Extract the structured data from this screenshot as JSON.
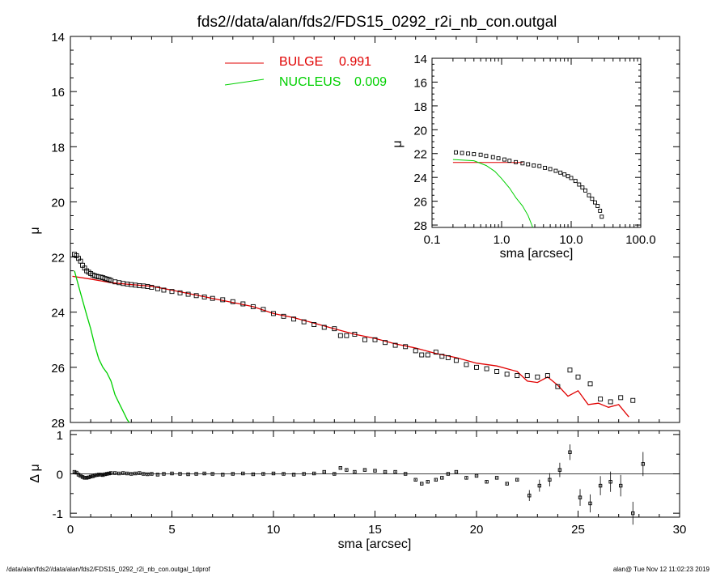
{
  "title": "fds2//data/alan/fds2/FDS15_0292_r2i_nb_con.outgal",
  "footer": {
    "left": "/data/alan/fds2//data/alan/fds2/FDS15_0292_r2i_nb_con.outgal_1dprof",
    "right": "alan@  Tue Nov 12 11:02:23 2019"
  },
  "colors": {
    "bulge": "#e00000",
    "nucleus": "#00d000",
    "data": "#000000"
  },
  "chart_data": [
    {
      "id": "main",
      "type": "line",
      "xlabel": "sma [arcsec]",
      "ylabel": "μ",
      "xlim": [
        0,
        30
      ],
      "ylim": [
        28,
        14
      ],
      "y_inverted": true,
      "xticks": [
        "0",
        "5",
        "10",
        "15",
        "20",
        "25",
        "30"
      ],
      "yticks": [
        "14",
        "16",
        "18",
        "20",
        "22",
        "24",
        "26",
        "28"
      ],
      "legend": {
        "placement": "top-center",
        "entries": [
          {
            "label": "BULGE",
            "value": "0.991",
            "color": "#e00000"
          },
          {
            "label": "NUCLEUS",
            "value": "0.009",
            "color": "#00d000"
          }
        ]
      },
      "series": [
        {
          "name": "BULGE",
          "kind": "line",
          "color": "#e00000",
          "x": [
            0.1,
            1,
            2,
            3,
            4,
            5,
            6,
            7,
            8,
            9,
            10,
            11,
            12,
            13,
            14,
            15,
            16,
            17,
            18,
            19,
            20,
            21,
            22,
            22.5,
            23,
            23.5,
            24,
            24.5,
            25,
            25.5,
            26,
            26.5,
            27,
            27.5
          ],
          "y": [
            22.7,
            22.8,
            22.93,
            23.0,
            23.06,
            23.2,
            23.35,
            23.5,
            23.65,
            23.8,
            24.05,
            24.2,
            24.4,
            24.6,
            24.8,
            24.95,
            25.15,
            25.3,
            25.5,
            25.65,
            25.85,
            25.95,
            26.15,
            26.5,
            26.55,
            26.35,
            26.65,
            27.05,
            26.85,
            27.35,
            27.3,
            27.45,
            27.35,
            27.8
          ]
        },
        {
          "name": "NUCLEUS",
          "kind": "line",
          "color": "#00d000",
          "x": [
            0.2,
            0.5,
            0.8,
            1.0,
            1.2,
            1.4,
            1.6,
            1.8,
            2.0,
            2.2,
            2.4,
            2.6,
            2.8,
            2.9
          ],
          "y": [
            22.5,
            23.3,
            24.1,
            24.6,
            25.2,
            25.7,
            26.0,
            26.2,
            26.5,
            27.0,
            27.3,
            27.6,
            27.9,
            28.0
          ]
        },
        {
          "name": "data",
          "kind": "scatter",
          "color": "#000000",
          "x": [
            0.2,
            0.3,
            0.4,
            0.5,
            0.6,
            0.7,
            0.8,
            0.9,
            1.0,
            1.1,
            1.2,
            1.3,
            1.4,
            1.5,
            1.6,
            1.7,
            1.8,
            1.9,
            2.0,
            2.2,
            2.4,
            2.6,
            2.8,
            3.0,
            3.2,
            3.4,
            3.6,
            3.8,
            4.0,
            4.3,
            4.6,
            5.0,
            5.4,
            5.8,
            6.2,
            6.6,
            7.0,
            7.5,
            8.0,
            8.5,
            9.0,
            9.5,
            10.0,
            10.5,
            11.0,
            11.5,
            12.0,
            12.5,
            13.0,
            13.3,
            13.6,
            14.0,
            14.5,
            15.0,
            15.5,
            16.0,
            16.5,
            17.0,
            17.3,
            17.6,
            18.0,
            18.3,
            18.6,
            19.0,
            19.5,
            20.0,
            20.5,
            21.0,
            21.5,
            22.0,
            22.5,
            23.0,
            23.5,
            24.0,
            24.6,
            25.0,
            25.6,
            26.1,
            26.6,
            27.1,
            27.7
          ],
          "y": [
            21.9,
            21.95,
            22.05,
            22.15,
            22.3,
            22.4,
            22.5,
            22.55,
            22.6,
            22.65,
            22.68,
            22.7,
            22.72,
            22.73,
            22.75,
            22.78,
            22.8,
            22.82,
            22.85,
            22.9,
            22.93,
            22.96,
            22.98,
            23.0,
            23.02,
            23.04,
            23.05,
            23.07,
            23.1,
            23.15,
            23.2,
            23.25,
            23.3,
            23.35,
            23.4,
            23.45,
            23.5,
            23.55,
            23.62,
            23.7,
            23.8,
            23.9,
            24.05,
            24.15,
            24.25,
            24.35,
            24.45,
            24.55,
            24.6,
            24.85,
            24.85,
            24.8,
            25.0,
            25.0,
            25.1,
            25.2,
            25.25,
            25.4,
            25.55,
            25.55,
            25.45,
            25.6,
            25.65,
            25.75,
            25.9,
            26.0,
            26.05,
            26.15,
            26.25,
            26.3,
            26.3,
            26.35,
            26.3,
            26.7,
            26.1,
            26.35,
            26.6,
            27.15,
            27.25,
            27.1,
            27.2
          ]
        }
      ]
    },
    {
      "id": "residual",
      "type": "scatter",
      "xlabel": "sma [arcsec]",
      "ylabel": "Δ μ",
      "xlim": [
        0,
        30
      ],
      "ylim": [
        -1.1,
        1.1
      ],
      "xticks": [
        "0",
        "5",
        "10",
        "15",
        "20",
        "25",
        "30"
      ],
      "yticks": [
        "-1",
        "0",
        "1"
      ],
      "x": [
        0.2,
        0.3,
        0.4,
        0.5,
        0.6,
        0.7,
        0.8,
        0.9,
        1.0,
        1.1,
        1.2,
        1.3,
        1.4,
        1.5,
        1.6,
        1.7,
        1.8,
        1.9,
        2.0,
        2.2,
        2.4,
        2.6,
        2.8,
        3.0,
        3.2,
        3.4,
        3.6,
        3.8,
        4.0,
        4.3,
        4.6,
        5.0,
        5.4,
        5.8,
        6.2,
        6.6,
        7.0,
        7.5,
        8.0,
        8.5,
        9.0,
        9.5,
        10.0,
        10.5,
        11.0,
        11.5,
        12.0,
        12.5,
        13.0,
        13.3,
        13.6,
        14.0,
        14.5,
        15.0,
        15.5,
        16.0,
        16.5,
        17.0,
        17.3,
        17.6,
        18.0,
        18.3,
        18.6,
        19.0,
        19.5,
        20.0,
        20.5,
        21.0,
        21.5,
        22.0,
        22.6,
        23.1,
        23.6,
        24.1,
        24.6,
        25.1,
        25.6,
        26.1,
        26.6,
        27.1,
        27.7,
        28.2
      ],
      "y": [
        0.05,
        0.03,
        -0.02,
        -0.05,
        -0.08,
        -0.1,
        -0.1,
        -0.09,
        -0.07,
        -0.06,
        -0.04,
        -0.03,
        -0.02,
        -0.02,
        -0.03,
        -0.01,
        0.0,
        0.01,
        0.02,
        0.02,
        0.01,
        0.02,
        0.01,
        0.0,
        0.01,
        0.02,
        0.0,
        -0.01,
        0.0,
        -0.02,
        0.0,
        0.01,
        0.0,
        -0.01,
        0.0,
        0.01,
        0.0,
        -0.02,
        0.0,
        0.01,
        -0.01,
        0.0,
        0.01,
        0.0,
        -0.02,
        0.0,
        0.01,
        0.05,
        0.0,
        0.15,
        0.1,
        0.05,
        0.1,
        0.08,
        0.05,
        0.05,
        0.0,
        -0.15,
        -0.25,
        -0.2,
        -0.15,
        -0.1,
        0.0,
        0.05,
        -0.1,
        -0.05,
        -0.2,
        -0.1,
        -0.25,
        -0.15,
        -0.55,
        -0.3,
        -0.15,
        0.1,
        0.55,
        -0.6,
        -0.75,
        -0.3,
        -0.2,
        -0.3,
        -1.0,
        0.25
      ]
    },
    {
      "id": "inset",
      "type": "line",
      "xlabel": "sma [arcsec]",
      "ylabel": "μ",
      "x_scale": "log",
      "xlim": [
        0.1,
        100
      ],
      "ylim": [
        28.2,
        14
      ],
      "y_inverted": true,
      "xticks": [
        0.1,
        1.0,
        10.0,
        100.0
      ],
      "xtick_labels": [
        "0.1",
        "1.0",
        "10.0",
        "100.0"
      ],
      "yticks": [
        "14",
        "16",
        "18",
        "20",
        "22",
        "24",
        "26",
        "28"
      ],
      "series": [
        {
          "name": "BULGE",
          "kind": "line",
          "color": "#e00000",
          "x": [
            0.2,
            0.5,
            1.0,
            2.0
          ],
          "y": [
            22.75,
            22.75,
            22.75,
            22.75
          ]
        },
        {
          "name": "NUCLEUS",
          "kind": "line",
          "color": "#00d000",
          "x": [
            0.2,
            0.4,
            0.6,
            0.8,
            1.0,
            1.3,
            1.6,
            2.0,
            2.4,
            2.8
          ],
          "y": [
            22.5,
            22.6,
            23.0,
            23.5,
            24.1,
            24.9,
            25.7,
            26.4,
            27.2,
            28.2
          ]
        },
        {
          "name": "data",
          "kind": "scatter",
          "color": "#000000",
          "x": [
            0.22,
            0.27,
            0.33,
            0.4,
            0.5,
            0.6,
            0.75,
            0.9,
            1.1,
            1.3,
            1.6,
            2.0,
            2.4,
            2.9,
            3.5,
            4.2,
            5.0,
            6.0,
            7.0,
            8.0,
            9.0,
            10.0,
            11.5,
            13.0,
            14.5,
            16.0,
            18.0,
            20.0,
            22.0,
            24.0,
            26.0,
            27.5
          ],
          "y": [
            21.9,
            21.95,
            22.0,
            22.05,
            22.1,
            22.2,
            22.3,
            22.4,
            22.5,
            22.6,
            22.72,
            22.82,
            22.9,
            23.0,
            23.05,
            23.2,
            23.3,
            23.45,
            23.6,
            23.75,
            23.9,
            24.05,
            24.3,
            24.6,
            24.85,
            25.1,
            25.5,
            25.8,
            26.1,
            26.4,
            26.8,
            27.3
          ]
        }
      ]
    }
  ]
}
